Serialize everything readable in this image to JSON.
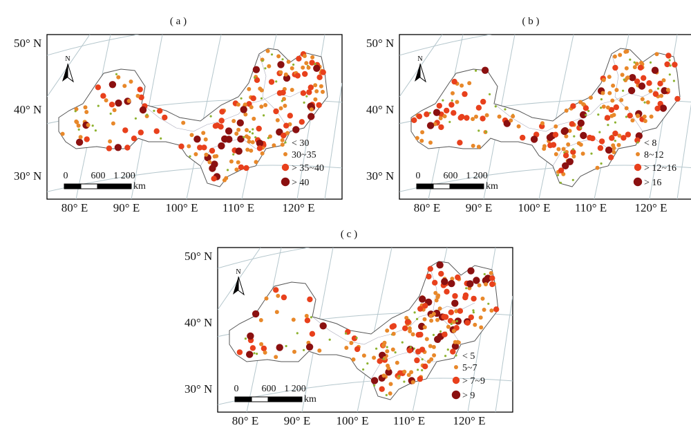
{
  "panels": [
    {
      "title": "( a )",
      "legend": [
        "< 30",
        "30~35",
        "> 35~40",
        "> 40"
      ]
    },
    {
      "title": "( b )",
      "legend": [
        "< 8",
        "8~12",
        "> 12~16",
        "> 16"
      ]
    },
    {
      "title": "( c )",
      "legend": [
        "< 5",
        "5~7",
        "> 7~9",
        "> 9"
      ]
    }
  ],
  "lat_labels": [
    "50° N",
    "40° N",
    "30° N"
  ],
  "lon_labels": [
    "80° E",
    "90° E",
    "100° E",
    "110° E",
    "120° E"
  ],
  "scale": {
    "ticks": [
      "0",
      "600",
      "1 200"
    ],
    "unit": "km"
  },
  "north_label": "N",
  "class_colors": [
    "#8db22f",
    "#e8882a",
    "#e8401c",
    "#8b1010"
  ]
}
